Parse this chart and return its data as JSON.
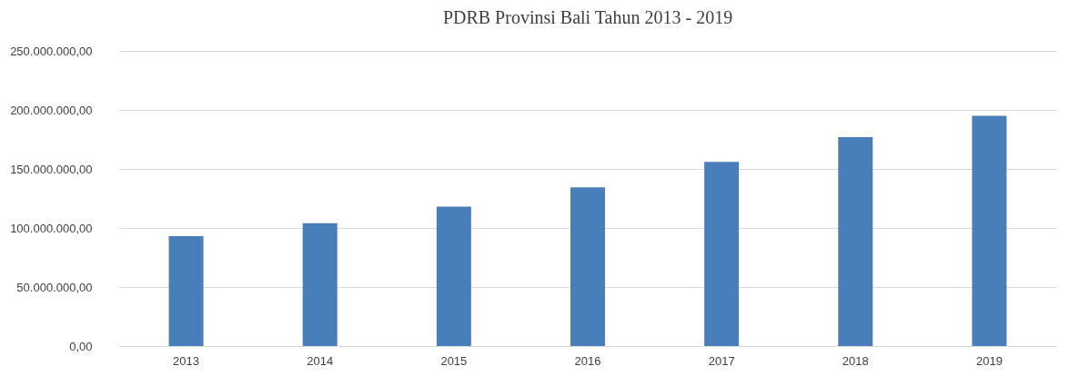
{
  "chart_data": {
    "type": "bar",
    "title": "PDRB Provinsi Bali Tahun 2013 - 2019",
    "categories": [
      "2013",
      "2014",
      "2015",
      "2016",
      "2017",
      "2018",
      "2019"
    ],
    "values": [
      93000000,
      104000000,
      118000000,
      134500000,
      156000000,
      177000000,
      195000000
    ],
    "color": "#4a7ebb",
    "ylim": [
      0,
      250000000
    ],
    "yticks": [
      {
        "value": 0,
        "label": "0,00"
      },
      {
        "value": 50000000,
        "label": "50.000.000,00"
      },
      {
        "value": 100000000,
        "label": "100.000.000,00"
      },
      {
        "value": 150000000,
        "label": "150.000.000,00"
      },
      {
        "value": 200000000,
        "label": "200.000.000,00"
      },
      {
        "value": 250000000,
        "label": "250.000.000,00"
      }
    ],
    "grid": "y"
  }
}
